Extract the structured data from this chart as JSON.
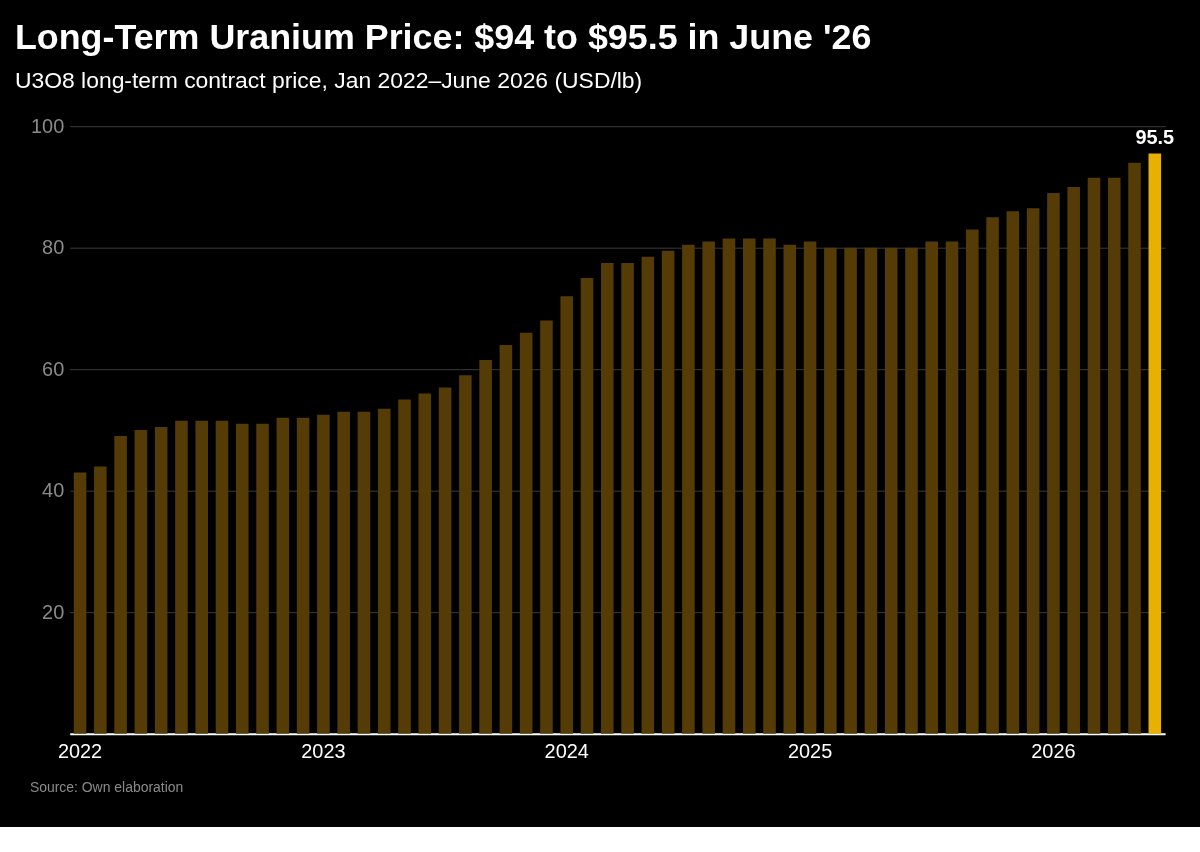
{
  "chart_data": {
    "type": "bar",
    "title": "Long-Term Uranium Price: $94 to $95.5 in June '26",
    "subtitle": "U3O8 long-term contract price, Jan 2022–June 2026 (USD/lb)",
    "categories": [
      "2022",
      null,
      null,
      null,
      null,
      null,
      null,
      null,
      null,
      null,
      null,
      null,
      "2023",
      null,
      null,
      null,
      null,
      null,
      null,
      null,
      null,
      null,
      null,
      null,
      "2024",
      null,
      null,
      null,
      null,
      null,
      null,
      null,
      null,
      null,
      null,
      null,
      "2025",
      null,
      null,
      null,
      null,
      null,
      null,
      null,
      null,
      null,
      null,
      null,
      "2026",
      null,
      null,
      null,
      null,
      null
    ],
    "values": [
      43,
      44,
      49,
      50,
      50.5,
      51.5,
      51.5,
      51.5,
      51,
      51,
      52,
      52,
      52.5,
      53,
      53,
      53.5,
      55,
      56,
      57,
      59,
      61.5,
      64,
      66,
      68,
      72,
      75,
      77.5,
      77.5,
      78.5,
      79.5,
      80.5,
      81,
      81.5,
      81.5,
      81.5,
      80.5,
      81,
      80,
      80,
      80,
      80,
      80,
      81,
      81,
      83,
      85,
      86,
      86.5,
      89,
      90,
      91.5,
      91.5,
      94,
      95.5
    ],
    "colors": [
      "#553c06",
      "#553c06",
      "#553c06",
      "#553c06",
      "#553c06",
      "#553c06",
      "#553c06",
      "#553c06",
      "#553c06",
      "#553c06",
      "#553c06",
      "#553c06",
      "#553c06",
      "#553c06",
      "#553c06",
      "#553c06",
      "#553c06",
      "#553c06",
      "#553c06",
      "#553c06",
      "#553c06",
      "#553c06",
      "#553c06",
      "#553c06",
      "#553c06",
      "#553c06",
      "#553c06",
      "#553c06",
      "#553c06",
      "#553c06",
      "#553c06",
      "#553c06",
      "#553c06",
      "#553c06",
      "#553c06",
      "#553c06",
      "#553c06",
      "#553c06",
      "#553c06",
      "#553c06",
      "#553c06",
      "#553c06",
      "#553c06",
      "#553c06",
      "#553c06",
      "#553c06",
      "#553c06",
      "#553c06",
      "#553c06",
      "#553c06",
      "#553c06",
      "#553c06",
      "#553c06",
      "#e8b000"
    ],
    "value_labels": [
      null,
      null,
      null,
      null,
      null,
      null,
      null,
      null,
      null,
      null,
      null,
      null,
      null,
      null,
      null,
      null,
      null,
      null,
      null,
      null,
      null,
      null,
      null,
      null,
      null,
      null,
      null,
      null,
      null,
      null,
      null,
      null,
      null,
      null,
      null,
      null,
      null,
      null,
      null,
      null,
      null,
      null,
      null,
      null,
      null,
      null,
      null,
      null,
      null,
      null,
      null,
      null,
      null,
      "95.5"
    ],
    "ylim": [
      0,
      100
    ],
    "yticks": [
      20,
      40,
      60,
      80,
      100
    ],
    "grid": "y",
    "annotations": [
      "Source: Own elaboration"
    ]
  }
}
